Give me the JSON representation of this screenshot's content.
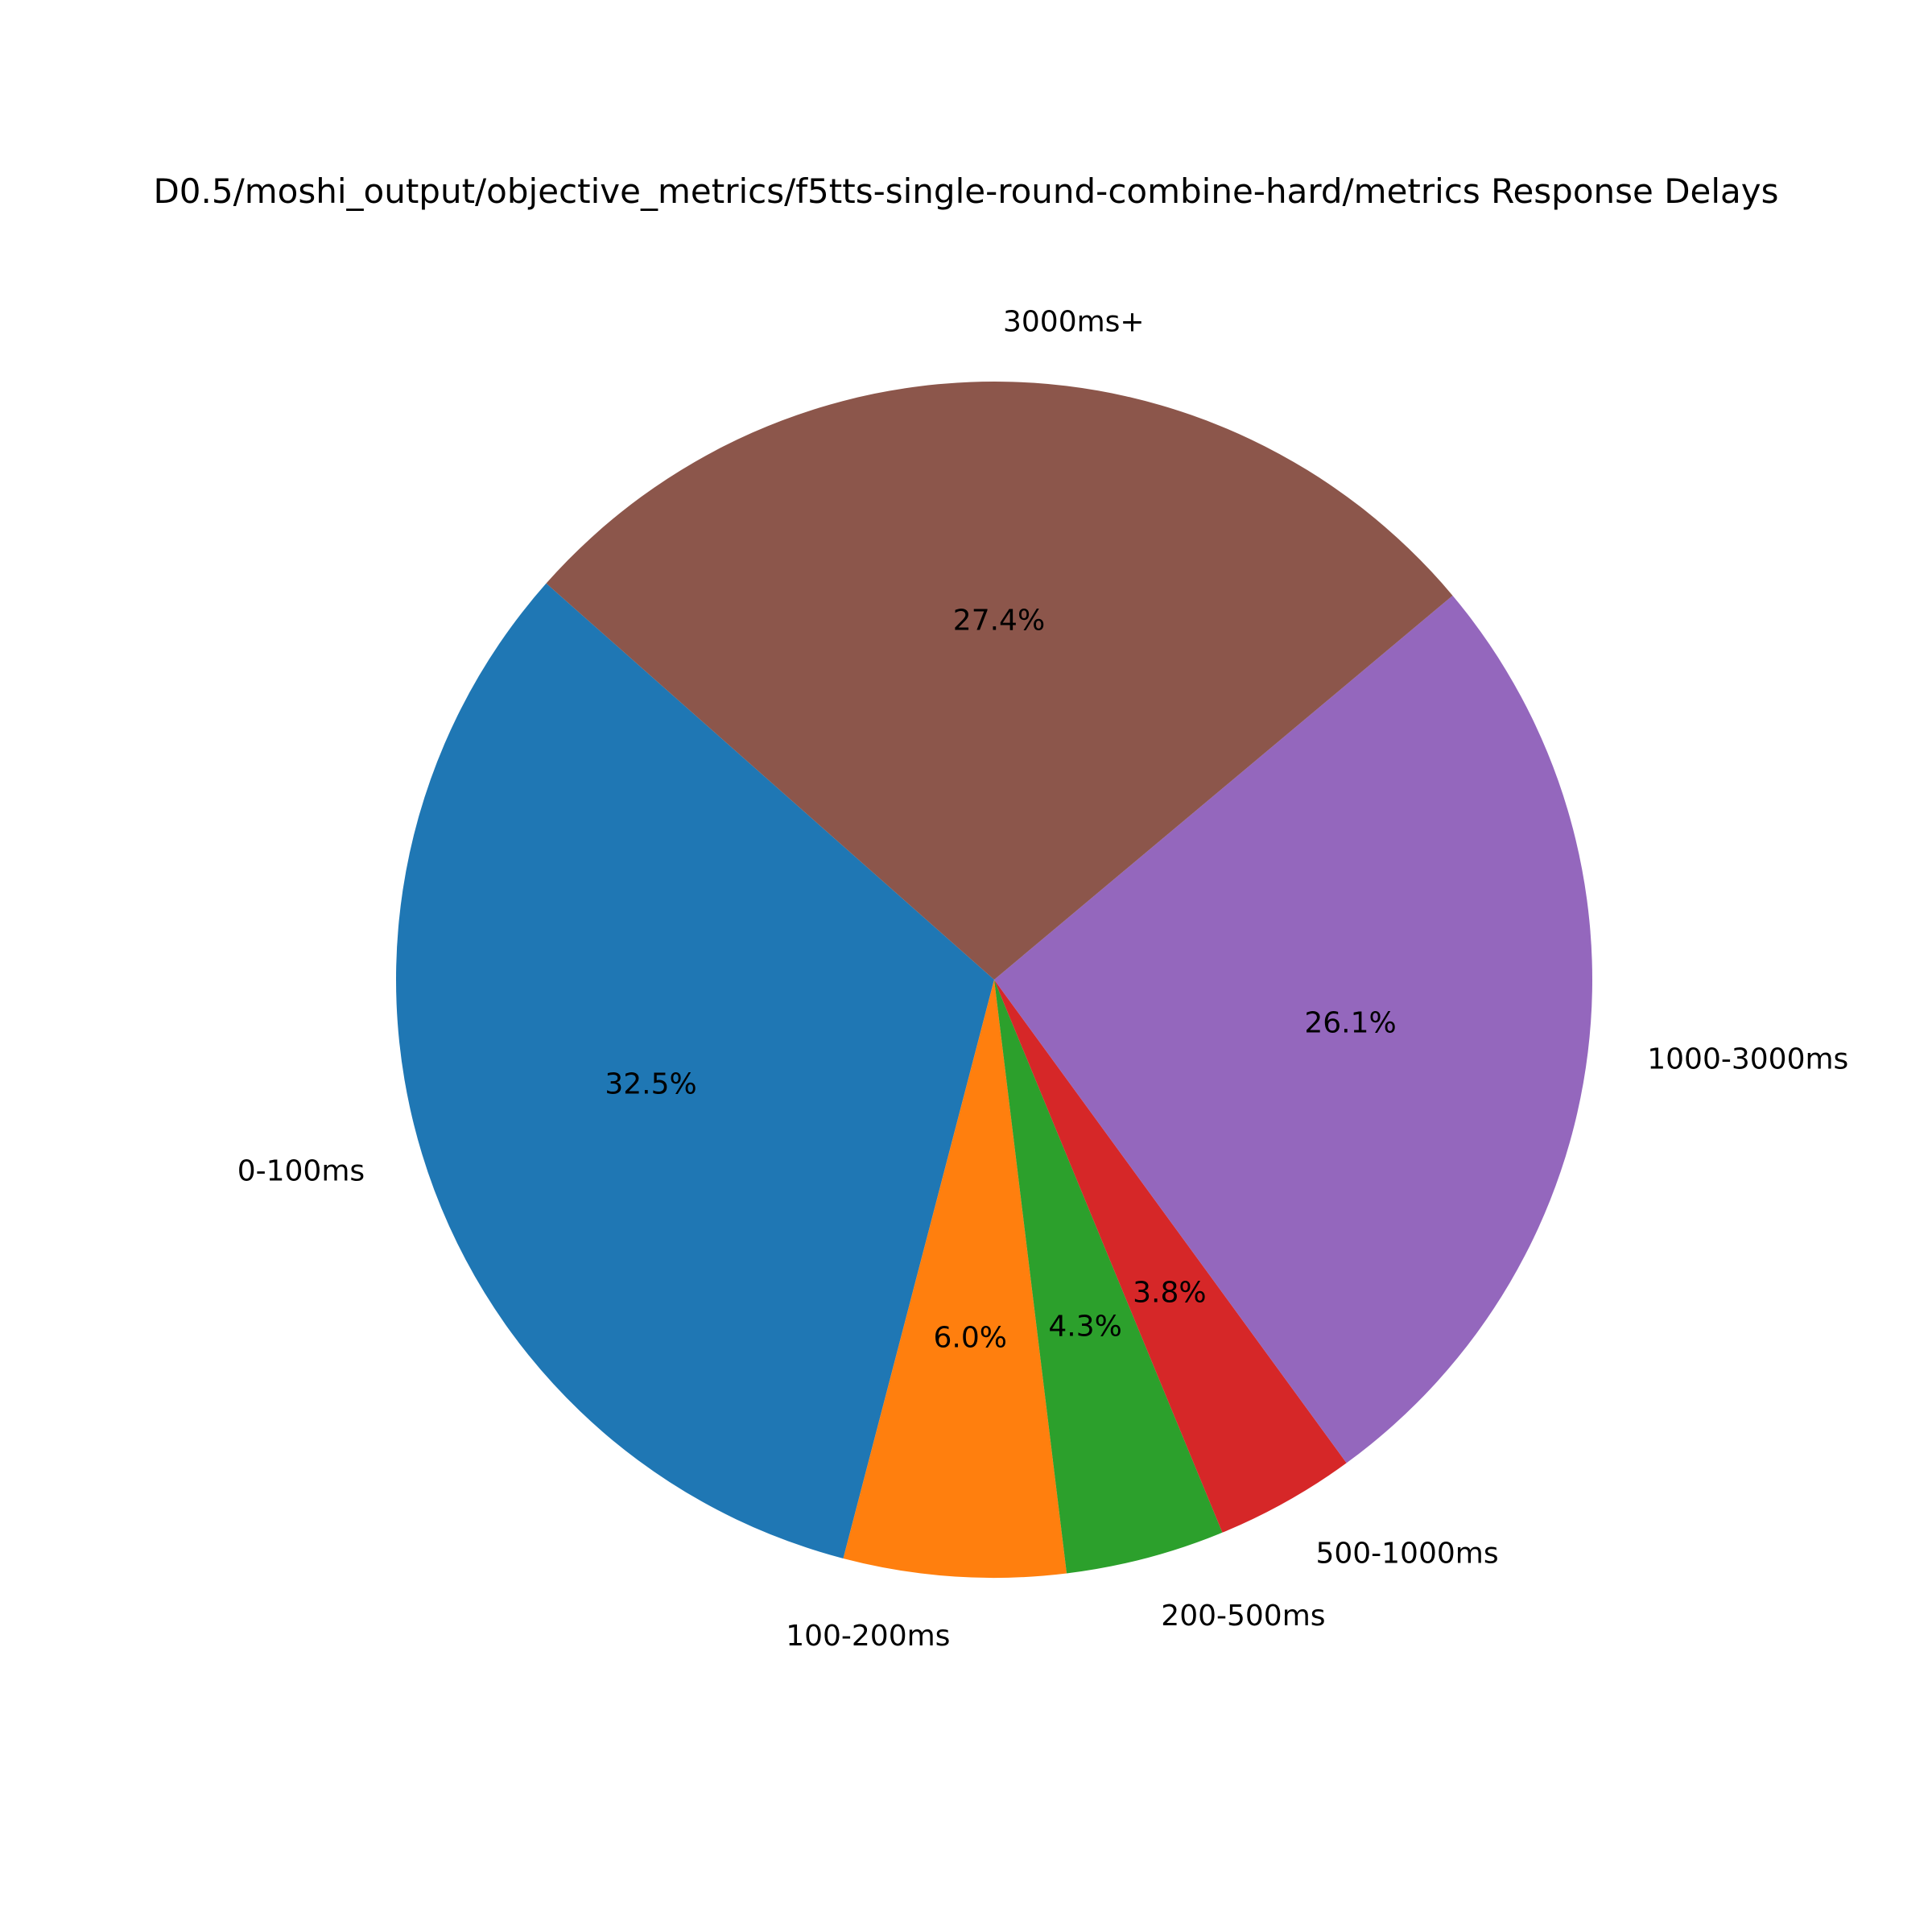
{
  "chart_data": {
    "type": "pie",
    "title": "D0.5/moshi_output/objective_metrics/f5tts-single-round-combine-hard/metrics Response Delays",
    "start_angle_deg": 138.5,
    "direction": "counterclockwise",
    "slices": [
      {
        "label": "0-100ms",
        "value": 32.5,
        "pct_label": "32.5%",
        "color": "#1f77b4"
      },
      {
        "label": "100-200ms",
        "value": 6.0,
        "pct_label": "6.0%",
        "color": "#ff7f0e"
      },
      {
        "label": "200-500ms",
        "value": 4.3,
        "pct_label": "4.3%",
        "color": "#2ca02c"
      },
      {
        "label": "500-1000ms",
        "value": 3.8,
        "pct_label": "3.8%",
        "color": "#d62728"
      },
      {
        "label": "1000-3000ms",
        "value": 26.1,
        "pct_label": "26.1%",
        "color": "#9467bd"
      },
      {
        "label": "3000ms+",
        "value": 27.4,
        "pct_label": "27.4%",
        "color": "#8c564b"
      }
    ]
  }
}
